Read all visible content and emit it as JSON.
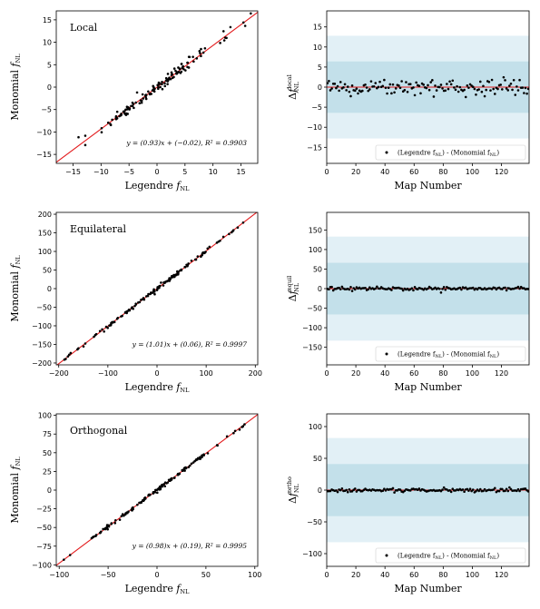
{
  "colors": {
    "points": "#000000",
    "fit_line": "#e31a1c",
    "band_1sigma": "#c3e0ea",
    "band_2sigma": "#e2f0f6"
  },
  "chart_data": [
    {
      "type": "scatter",
      "panel": "left",
      "title": "Local",
      "xlabel": "Legendre f_NL",
      "ylabel": "Monomial f_NL",
      "xlim": [
        -18,
        18
      ],
      "ylim": [
        -17,
        17
      ],
      "xticks": [
        -15,
        -10,
        -5,
        0,
        5,
        10,
        15
      ],
      "yticks": [
        -15,
        -10,
        -5,
        0,
        5,
        10,
        15
      ],
      "annotation": "y = (0.93)x + (−0.02),  R² = 0.9903",
      "fit": {
        "slope": 0.93,
        "intercept": -0.02
      },
      "n_points": 140
    },
    {
      "type": "scatter",
      "panel": "right",
      "title": "",
      "xlabel": "Map Number",
      "ylabel": "Δf_NL^local",
      "xlim": [
        0,
        139
      ],
      "ylim": [
        -19,
        19
      ],
      "xticks": [
        0,
        20,
        40,
        60,
        80,
        100,
        120
      ],
      "yticks": [
        -15,
        -10,
        -5,
        0,
        5,
        10,
        15
      ],
      "bands": {
        "inner": 6.4,
        "outer": 12.8
      },
      "legend": "(Legendre f_NL) - (Monomial f_NL)",
      "legend_position": "lower-right",
      "scatter_amplitude": 1.0
    },
    {
      "type": "scatter",
      "panel": "left",
      "title": "Equilateral",
      "xlabel": "Legendre f_NL",
      "ylabel": "Monomial f_NL",
      "xlim": [
        -205,
        205
      ],
      "ylim": [
        -205,
        205
      ],
      "xticks": [
        -200,
        -100,
        0,
        100,
        200
      ],
      "yticks": [
        -200,
        -150,
        -100,
        -50,
        0,
        50,
        100,
        150,
        200
      ],
      "annotation": "y = (1.01)x + (0.06),  R² = 0.9997",
      "fit": {
        "slope": 1.01,
        "intercept": 0.06
      },
      "n_points": 140
    },
    {
      "type": "scatter",
      "panel": "right",
      "title": "",
      "xlabel": "Map Number",
      "ylabel": "Δf_NL^equil",
      "xlim": [
        0,
        139
      ],
      "ylim": [
        -195,
        195
      ],
      "xticks": [
        0,
        20,
        40,
        60,
        80,
        100,
        120
      ],
      "yticks": [
        -150,
        -100,
        -50,
        0,
        50,
        100,
        150
      ],
      "bands": {
        "inner": 66,
        "outer": 133
      },
      "legend": "(Legendre f_NL) - (Monomial f_NL)",
      "legend_position": "lower-right",
      "scatter_amplitude": 2.5
    },
    {
      "type": "scatter",
      "panel": "left",
      "title": "Orthogonal",
      "xlabel": "Legendre f_NL",
      "ylabel": "Monomial f_NL",
      "xlim": [
        -103,
        103
      ],
      "ylim": [
        -102,
        102
      ],
      "xticks": [
        -100,
        -50,
        0,
        50,
        100
      ],
      "yticks": [
        -100,
        -75,
        -50,
        -25,
        0,
        25,
        50,
        75,
        100
      ],
      "annotation": "y = (0.98)x + (0.19),  R² = 0.9995",
      "fit": {
        "slope": 0.98,
        "intercept": 0.19
      },
      "n_points": 140
    },
    {
      "type": "scatter",
      "panel": "right",
      "title": "",
      "xlabel": "Map Number",
      "ylabel": "Δf_NL^ortho",
      "xlim": [
        0,
        139
      ],
      "ylim": [
        -120,
        120
      ],
      "xticks": [
        0,
        20,
        40,
        60,
        80,
        100,
        120
      ],
      "yticks": [
        -100,
        -50,
        0,
        50,
        100
      ],
      "bands": {
        "inner": 41,
        "outer": 82
      },
      "legend": "(Legendre f_NL) - (Monomial f_NL)",
      "legend_position": "lower-right",
      "scatter_amplitude": 1.5
    }
  ]
}
